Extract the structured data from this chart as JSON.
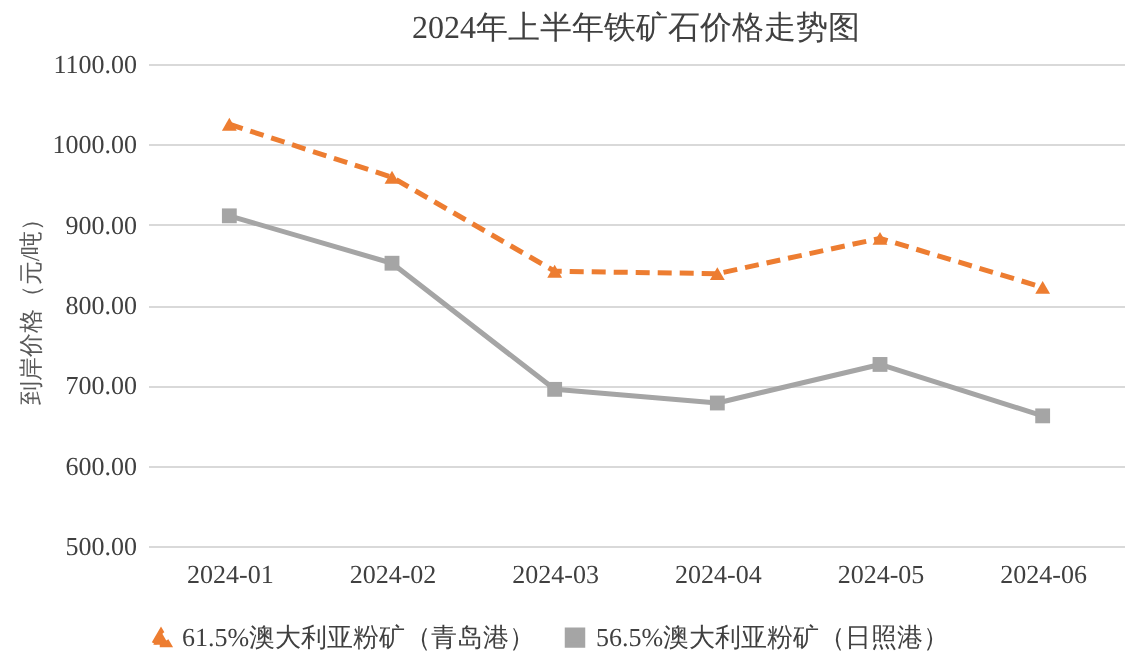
{
  "chart_data": {
    "type": "line",
    "title": "2024年上半年铁矿石价格走势图",
    "ylabel": "到岸价格（元/吨）",
    "categories": [
      "2024-01",
      "2024-02",
      "2024-03",
      "2024-04",
      "2024-05",
      "2024-06"
    ],
    "series": [
      {
        "name": "61.5%澳大利亚粉矿（青岛港）",
        "color": "#ed7d31",
        "marker": "triangle",
        "line_style": "dashed",
        "values": [
          1025,
          959,
          842,
          839,
          883,
          822
        ]
      },
      {
        "name": "56.5%澳大利亚粉矿（日照港）",
        "color": "#a5a5a5",
        "marker": "square",
        "line_style": "solid",
        "values": [
          911,
          852,
          695,
          678,
          726,
          662
        ]
      }
    ],
    "ylim": [
      500,
      1100
    ],
    "yticks": [
      {
        "value": 500,
        "label": "500.00"
      },
      {
        "value": 600,
        "label": "600.00"
      },
      {
        "value": 700,
        "label": "700.00"
      },
      {
        "value": 800,
        "label": "800.00"
      },
      {
        "value": 900,
        "label": "900.00"
      },
      {
        "value": 1000,
        "label": "1000.00"
      },
      {
        "value": 1100,
        "label": "1100.00"
      }
    ],
    "grid": "y",
    "legend": "bottom"
  }
}
